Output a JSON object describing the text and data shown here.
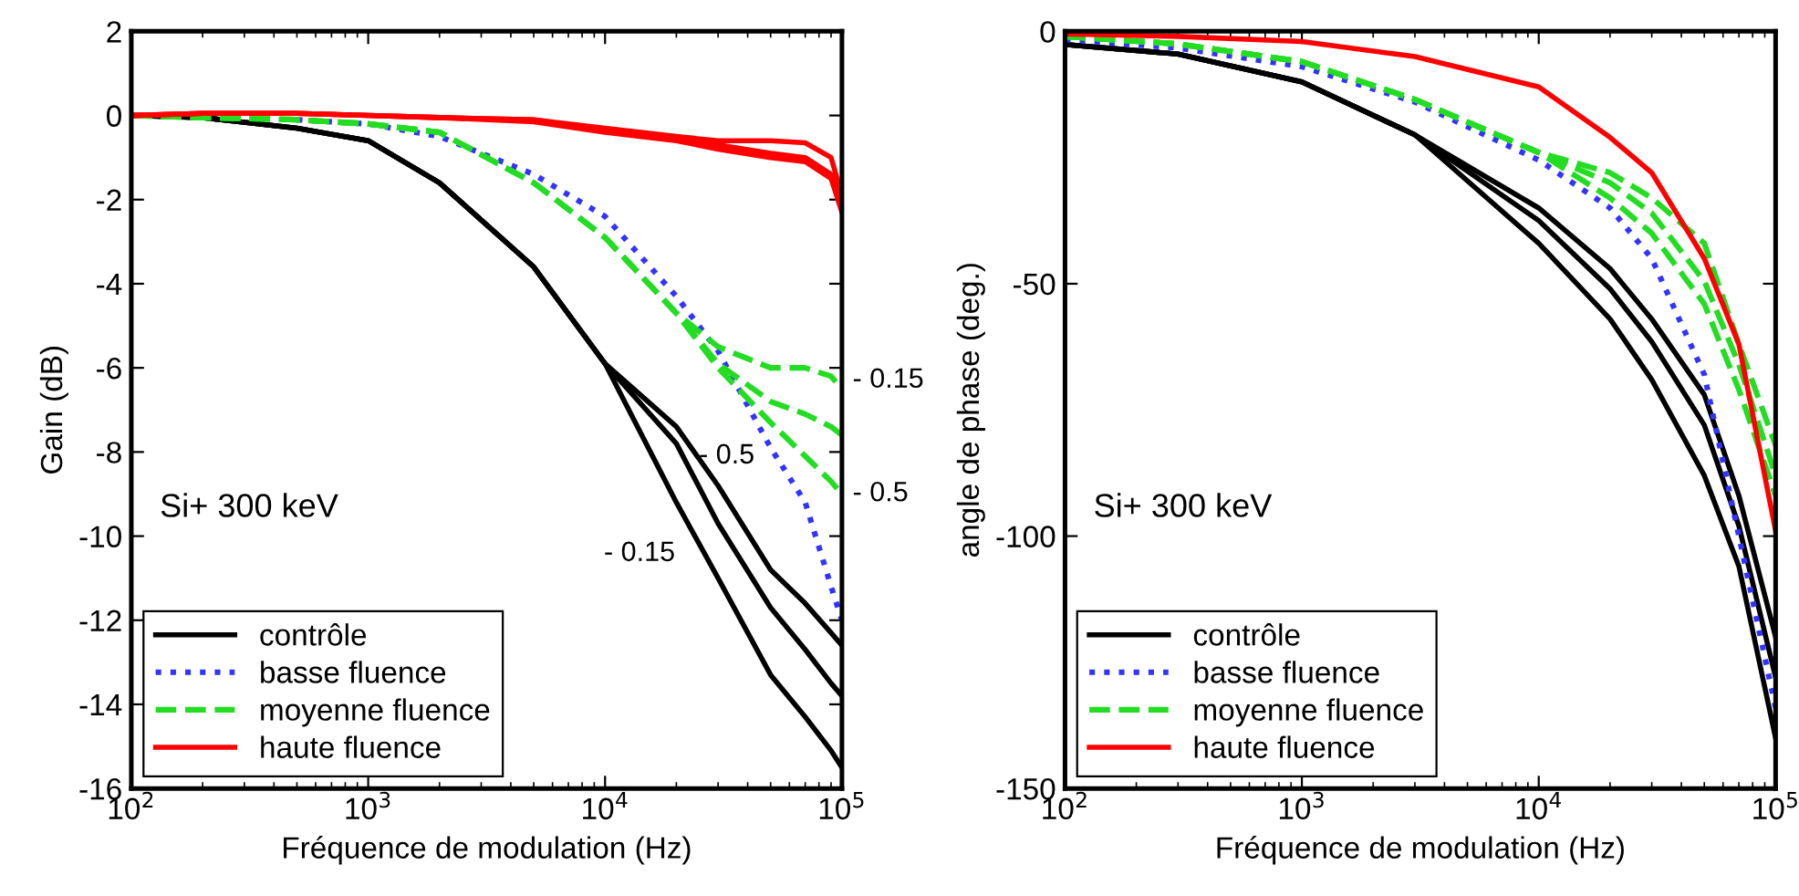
{
  "chart_data": [
    {
      "type": "line",
      "xlabel": "Fréquence de modulation (Hz)",
      "ylabel": "Gain (dB)",
      "log": "x",
      "xlim": [
        100,
        100000
      ],
      "ylim": [
        -16,
        2
      ],
      "xticks": [
        {
          "value": 100,
          "label": "10$^{2}$"
        },
        {
          "value": 1000,
          "label": "10$^{3}$"
        },
        {
          "value": 10000,
          "label": "10$^{4}$"
        },
        {
          "value": 100000,
          "label": "10$^{5}$"
        }
      ],
      "yticks": [
        2,
        0,
        -2,
        -4,
        -6,
        -8,
        -10,
        -12,
        -14,
        -16
      ],
      "grid": false,
      "legend": "bottom left",
      "x": [
        100,
        200,
        500,
        1000,
        2000,
        5000,
        10000,
        20000,
        30000,
        50000,
        70000,
        90000,
        100000
      ],
      "series": [
        {
          "name": "contrôle",
          "color": "#000000",
          "line_style": "solid",
          "values": [
            0,
            -0.05,
            -0.3,
            -0.6,
            -1.6,
            -3.6,
            -5.9,
            -7.4,
            -8.8,
            -10.8,
            -11.6,
            -12.3,
            -12.6
          ]
        },
        {
          "color": "#000000",
          "line_style": "solid",
          "values": [
            0,
            -0.05,
            -0.3,
            -0.6,
            -1.6,
            -3.6,
            -5.9,
            -7.8,
            -9.7,
            -11.7,
            -12.7,
            -13.5,
            -13.8
          ]
        },
        {
          "color": "#000000",
          "line_style": "solid",
          "values": [
            0,
            -0.05,
            -0.3,
            -0.6,
            -1.6,
            -3.6,
            -5.9,
            -9.2,
            -11.0,
            -13.3,
            -14.3,
            -15.1,
            -15.5
          ]
        },
        {
          "name": "basse fluence",
          "color": "#3333ff",
          "line_style": "dotted",
          "values": [
            null,
            null,
            -0.1,
            -0.2,
            -0.5,
            -1.4,
            -2.4,
            -4.3,
            -5.6,
            -7.9,
            -9.2,
            -11.2,
            -12.0
          ]
        },
        {
          "name": "moyenne fluence",
          "color": "#22dd22",
          "line_style": "dashed",
          "values": [
            0,
            -0.05,
            -0.1,
            -0.2,
            -0.4,
            -1.6,
            -2.9,
            -4.7,
            -5.5,
            -6.0,
            -6.0,
            -6.2,
            -6.5
          ]
        },
        {
          "color": "#22dd22",
          "line_style": "dashed",
          "values": [
            0,
            -0.05,
            -0.1,
            -0.2,
            -0.4,
            -1.6,
            -2.9,
            -4.7,
            -5.9,
            -6.8,
            -7.1,
            -7.4,
            -7.6
          ]
        },
        {
          "color": "#22dd22",
          "line_style": "dashed",
          "values": [
            0,
            -0.05,
            -0.1,
            -0.2,
            -0.4,
            -1.6,
            -2.9,
            -4.7,
            -6.0,
            -7.3,
            -8.1,
            -8.7,
            -9.0
          ]
        },
        {
          "name": "haute fluence",
          "color": "#ff0000",
          "line_style": "solid",
          "values": [
            0,
            0.05,
            0.05,
            0,
            -0.05,
            -0.1,
            -0.3,
            -0.5,
            -0.6,
            -0.6,
            -0.65,
            -1.0,
            -1.9
          ]
        },
        {
          "color": "#ff0000",
          "line_style": "solid",
          "values": [
            0,
            0.05,
            0.05,
            0,
            -0.05,
            -0.1,
            -0.35,
            -0.55,
            -0.7,
            -0.9,
            -1.0,
            -1.4,
            -2.2
          ]
        },
        {
          "color": "#ff0000",
          "line_style": "solid",
          "values": [
            0,
            0.05,
            0.05,
            0,
            -0.05,
            -0.15,
            -0.4,
            -0.6,
            -0.8,
            -1.0,
            -1.1,
            -1.5,
            -2.3
          ]
        }
      ],
      "annotations": [
        "Si+ 300 keV",
        "- 0.15",
        "- 0.5",
        {
          "text": "- 0.5",
          "x": 22000,
          "y": -8.1
        },
        "- 0.15"
      ]
    },
    {
      "type": "line",
      "xlabel": "Fréquence de modulation (Hz)",
      "ylabel": "angle de phase (deg.)",
      "log": "x",
      "xlim": [
        100,
        100000
      ],
      "ylim": [
        -150,
        0
      ],
      "xticks": [
        {
          "value": 100,
          "label": "10$^{2}$"
        },
        {
          "value": 1000,
          "label": "10$^{3}$"
        },
        {
          "value": 10000,
          "label": "10$^{4}$"
        },
        {
          "value": 100000,
          "label": "10$^{5}$"
        }
      ],
      "yticks": [
        0,
        -50,
        -100,
        -150
      ],
      "grid": false,
      "legend": "bottom left",
      "x": [
        100,
        300,
        1000,
        3000,
        10000,
        20000,
        30000,
        50000,
        70000,
        100000
      ],
      "series": [
        {
          "name": "contrôle",
          "color": "#000000",
          "line_style": "solid",
          "values": [
            -2.6,
            -4.5,
            -10,
            -20.5,
            -35,
            -47,
            -57,
            -72,
            -92,
            -120
          ]
        },
        {
          "color": "#000000",
          "line_style": "solid",
          "values": [
            -2.6,
            -4.5,
            -10,
            -20.5,
            -37.5,
            -51,
            -61.5,
            -78,
            -98,
            -128
          ]
        },
        {
          "color": "#000000",
          "line_style": "solid",
          "values": [
            -2.6,
            -4.5,
            -10,
            -20.5,
            -42,
            -57,
            -69,
            -88,
            -106,
            -140
          ]
        },
        {
          "name": "basse fluence",
          "color": "#3333ff",
          "line_style": "dotted",
          "values": [
            -1.6,
            -3.3,
            -7,
            -14,
            -25.5,
            -35,
            -45,
            -68,
            -100,
            -134
          ]
        },
        {
          "name": "moyenne fluence",
          "color": "#22dd22",
          "line_style": "dashed",
          "values": [
            -1,
            -2.5,
            -6,
            -13.5,
            -24,
            -28,
            -33,
            -42,
            -62,
            -82
          ]
        },
        {
          "color": "#22dd22",
          "line_style": "dashed",
          "values": [
            -1,
            -2.5,
            -6,
            -13.5,
            -24,
            -30,
            -36,
            -49.5,
            -66,
            -88
          ]
        },
        {
          "color": "#22dd22",
          "line_style": "dashed",
          "values": [
            -1,
            -2.5,
            -6,
            -13.5,
            -24,
            -33,
            -40,
            -54,
            -71,
            -92
          ]
        },
        {
          "name": "haute fluence",
          "color": "#ff0000",
          "line_style": "solid",
          "values": [
            -0.5,
            -1,
            -2,
            -5,
            -11,
            -21,
            -28,
            -45,
            -62,
            -99
          ]
        }
      ],
      "annotations": [
        "Si+ 300 keV"
      ]
    }
  ]
}
